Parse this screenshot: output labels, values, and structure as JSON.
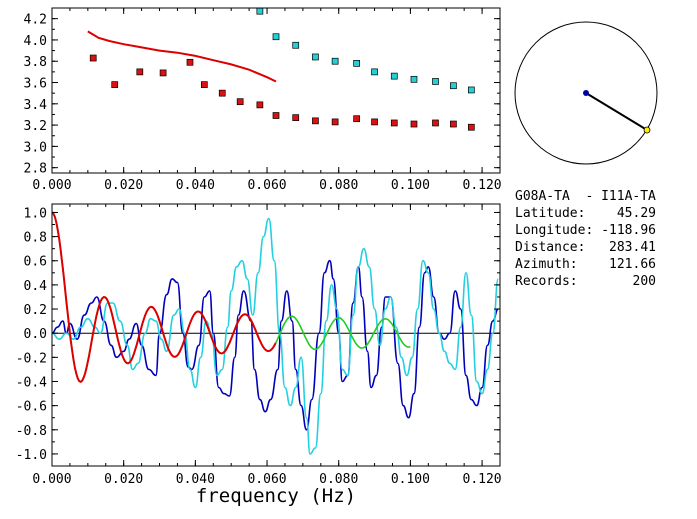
{
  "chart_data": [
    {
      "type": "scatter",
      "xlim": [
        0.0,
        0.125
      ],
      "ylim": [
        2.75,
        4.3
      ],
      "xticks": [
        "0.000",
        "0.020",
        "0.040",
        "0.060",
        "0.080",
        "0.100",
        "0.120"
      ],
      "yticks": [
        "2.8",
        "3.0",
        "3.2",
        "3.4",
        "3.6",
        "3.8",
        "4.0",
        "4.2"
      ],
      "grid": false,
      "series": [
        {
          "kind": "line",
          "color": "#dd0000",
          "x": [
            0.01,
            0.013,
            0.016,
            0.02,
            0.025,
            0.03,
            0.035,
            0.04,
            0.045,
            0.05,
            0.055,
            0.06,
            0.0625
          ],
          "y": [
            4.08,
            4.02,
            3.99,
            3.96,
            3.93,
            3.9,
            3.88,
            3.85,
            3.81,
            3.77,
            3.72,
            3.65,
            3.61
          ]
        },
        {
          "kind": "markers",
          "color": "#dd1111",
          "x": [
            0.0115,
            0.0175,
            0.0245,
            0.031,
            0.0385,
            0.0425,
            0.0475,
            0.0525,
            0.058,
            0.0625,
            0.068,
            0.0735,
            0.079,
            0.085,
            0.09,
            0.0955,
            0.101,
            0.107,
            0.112,
            0.117
          ],
          "y": [
            3.83,
            3.58,
            3.7,
            3.69,
            3.79,
            3.58,
            3.5,
            3.42,
            3.39,
            3.29,
            3.27,
            3.24,
            3.23,
            3.26,
            3.23,
            3.22,
            3.21,
            3.22,
            3.21,
            3.18
          ]
        },
        {
          "kind": "markers",
          "color": "#22d0d8",
          "x": [
            0.058,
            0.0625,
            0.068,
            0.0735,
            0.079,
            0.085,
            0.09,
            0.0955,
            0.101,
            0.107,
            0.112,
            0.117
          ],
          "y": [
            4.27,
            4.03,
            3.95,
            3.84,
            3.8,
            3.78,
            3.7,
            3.66,
            3.63,
            3.61,
            3.57,
            3.53
          ]
        }
      ]
    },
    {
      "type": "line",
      "xlabel": "frequency (Hz)",
      "xlim": [
        0.0,
        0.125
      ],
      "ylim": [
        -1.1,
        1.07
      ],
      "xticks": [
        "0.000",
        "0.020",
        "0.040",
        "0.060",
        "0.080",
        "0.100",
        "0.120"
      ],
      "yticks": [
        "1.0",
        "0.8",
        "0.6",
        "0.4",
        "0.2",
        "0.0",
        "-0.2",
        "-0.4",
        "-0.6",
        "-0.8",
        "-1.0"
      ],
      "zero_line": true,
      "series": [
        {
          "color": "#0000bb",
          "x": [
            0.0,
            0.0015,
            0.003,
            0.004,
            0.005,
            0.007,
            0.009,
            0.011,
            0.0125,
            0.0145,
            0.0165,
            0.018,
            0.02,
            0.0215,
            0.0235,
            0.025,
            0.027,
            0.029,
            0.03,
            0.032,
            0.0335,
            0.035,
            0.0365,
            0.038,
            0.039,
            0.041,
            0.0425,
            0.044,
            0.045,
            0.0465,
            0.048,
            0.0495,
            0.051,
            0.052,
            0.0535,
            0.0555,
            0.0565,
            0.058,
            0.0595,
            0.061,
            0.063,
            0.064,
            0.0655,
            0.067,
            0.068,
            0.0695,
            0.071,
            0.0725,
            0.0745,
            0.076,
            0.0775,
            0.0785,
            0.08,
            0.081,
            0.0825,
            0.084,
            0.0855,
            0.0865,
            0.088,
            0.089,
            0.0905,
            0.092,
            0.093,
            0.0945,
            0.0965,
            0.098,
            0.0995,
            0.101,
            0.1025,
            0.104,
            0.105,
            0.1065,
            0.108,
            0.1095,
            0.111,
            0.1125,
            0.114,
            0.1155,
            0.117,
            0.1185,
            0.12,
            0.1215,
            0.123,
            0.1245
          ],
          "y": [
            0.0,
            0.05,
            0.1,
            0.0,
            0.08,
            -0.05,
            0.15,
            0.25,
            0.3,
            0.1,
            -0.1,
            -0.2,
            -0.15,
            -0.05,
            0.08,
            -0.1,
            -0.3,
            -0.35,
            0.0,
            0.32,
            0.45,
            0.42,
            0.0,
            -0.28,
            -0.3,
            -0.1,
            0.3,
            0.35,
            0.0,
            -0.45,
            -0.5,
            -0.52,
            -0.2,
            0.15,
            0.35,
            0.1,
            -0.3,
            -0.55,
            -0.65,
            -0.55,
            -0.3,
            0.1,
            0.35,
            0.1,
            -0.3,
            -0.6,
            -0.8,
            -0.55,
            0.0,
            0.5,
            0.6,
            0.45,
            0.0,
            -0.4,
            -0.35,
            0.25,
            0.55,
            0.3,
            -0.15,
            -0.45,
            -0.35,
            0.05,
            0.3,
            0.3,
            -0.25,
            -0.6,
            -0.7,
            -0.5,
            0.05,
            0.5,
            0.55,
            0.3,
            0.0,
            -0.05,
            0.0,
            0.35,
            0.2,
            -0.35,
            -0.55,
            -0.6,
            -0.45,
            -0.1,
            0.1,
            0.2
          ]
        },
        {
          "color": "#22d0e0",
          "x": [
            0.0,
            0.002,
            0.004,
            0.006,
            0.008,
            0.01,
            0.012,
            0.0135,
            0.0155,
            0.017,
            0.019,
            0.021,
            0.0225,
            0.024,
            0.026,
            0.0275,
            0.029,
            0.0305,
            0.032,
            0.034,
            0.0355,
            0.037,
            0.0385,
            0.04,
            0.0415,
            0.043,
            0.0445,
            0.046,
            0.0475,
            0.049,
            0.05,
            0.0515,
            0.053,
            0.0545,
            0.056,
            0.0575,
            0.059,
            0.0605,
            0.062,
            0.0635,
            0.065,
            0.0665,
            0.068,
            0.0695,
            0.071,
            0.072,
            0.0735,
            0.075,
            0.0765,
            0.078,
            0.0795,
            0.081,
            0.0825,
            0.084,
            0.0855,
            0.087,
            0.0885,
            0.09,
            0.0915,
            0.093,
            0.0945,
            0.096,
            0.0975,
            0.099,
            0.1005,
            0.102,
            0.1035,
            0.105,
            0.1065,
            0.108,
            0.1095,
            0.111,
            0.1125,
            0.114,
            0.1155,
            0.117,
            0.1185,
            0.12,
            0.1215,
            0.123,
            0.1245
          ],
          "y": [
            0.0,
            -0.05,
            0.0,
            -0.05,
            0.05,
            0.12,
            0.05,
            0.0,
            0.25,
            0.25,
            0.1,
            -0.1,
            -0.3,
            -0.25,
            0.0,
            0.12,
            0.1,
            -0.05,
            -0.15,
            0.15,
            0.2,
            0.0,
            -0.3,
            -0.45,
            -0.2,
            0.1,
            0.0,
            -0.35,
            -0.3,
            0.05,
            0.35,
            0.55,
            0.6,
            0.45,
            0.15,
            0.5,
            0.8,
            0.95,
            0.6,
            0.0,
            -0.45,
            -0.6,
            -0.45,
            -0.2,
            -0.7,
            -1.0,
            -0.95,
            -0.5,
            0.1,
            0.4,
            0.2,
            -0.3,
            -0.35,
            0.15,
            0.55,
            0.7,
            0.55,
            0.2,
            -0.1,
            0.2,
            0.3,
            0.05,
            -0.2,
            -0.35,
            -0.2,
            0.2,
            0.6,
            0.5,
            0.2,
            0.0,
            -0.15,
            -0.25,
            -0.3,
            0.05,
            0.5,
            0.15,
            -0.4,
            -0.5,
            -0.3,
            0.0,
            0.45
          ]
        },
        {
          "color": "#22cc22",
          "formula": "J0",
          "speed": 3.7,
          "range": [
            0.0,
            0.1
          ]
        },
        {
          "color": "#dd0000",
          "formula": "J0",
          "speed": 3.7,
          "range": [
            0.0,
            0.0625
          ]
        }
      ]
    }
  ],
  "map": {
    "circle_color": "#000000",
    "station_a_color": "#0000aa",
    "station_b_color": "#ffee00"
  },
  "info": {
    "title": "G08A-TA  - I11A-TA",
    "rows": [
      {
        "label": "Latitude:",
        "value": "45.29"
      },
      {
        "label": "Longitude:",
        "value": "-118.96"
      },
      {
        "label": "Distance:",
        "value": "283.41"
      },
      {
        "label": "Azimuth:",
        "value": "121.66"
      },
      {
        "label": "Records:",
        "value": "200"
      }
    ]
  }
}
